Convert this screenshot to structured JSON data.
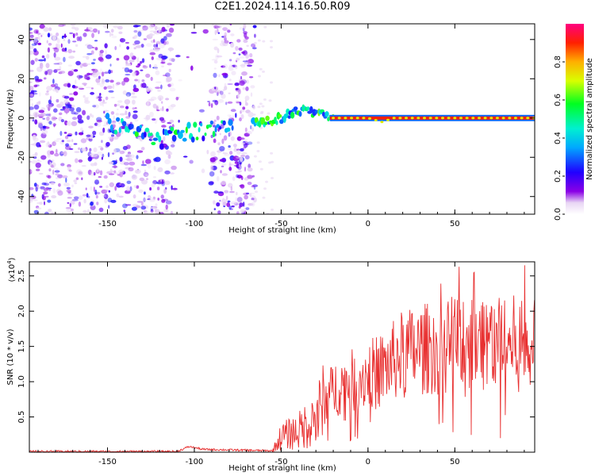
{
  "title": "C2E1.2024.114.16.50.R09",
  "chart_data": [
    {
      "type": "heatmap",
      "name": "spectrogram",
      "xlabel": "Height of straight line (km)",
      "ylabel": "Frequency (Hz)",
      "xlim": [
        -195,
        96
      ],
      "ylim": [
        -49,
        48
      ],
      "x_ticks": [
        -150,
        -100,
        -50,
        0,
        50
      ],
      "y_ticks": [
        -40,
        -20,
        0,
        20,
        40
      ],
      "colorbar": {
        "label": "Normalized spectral amplitude",
        "range": [
          0.0,
          1.0
        ],
        "ticks": [
          "0.0",
          "0.2",
          "0.4",
          "0.6",
          "0.8"
        ],
        "colormap": "rainbow (white-lavender at 0, purple, blue, cyan, green, yellow, orange, red, magenta at 1)"
      },
      "features": [
        {
          "desc": "noise speckles",
          "x_range": [
            -195,
            -65
          ],
          "freq_range": [
            -49,
            48
          ],
          "amplitude": 0.1
        },
        {
          "desc": "gap with little noise",
          "x_range": [
            -112,
            -90
          ],
          "amplitude": 0.02
        },
        {
          "desc": "weak trace",
          "x_range": [
            -150,
            -80
          ],
          "freq_center": -8,
          "amplitude": 0.35
        },
        {
          "desc": "main trace",
          "x_range": [
            -65,
            96
          ],
          "freq_center": 0,
          "amplitude": 1.0
        }
      ],
      "trace_ridge": [
        {
          "x": -150,
          "y": -3
        },
        {
          "x": -120,
          "y": -11
        },
        {
          "x": -100,
          "y": -7
        },
        {
          "x": -80,
          "y": -5
        },
        {
          "x": -65,
          "y": -3
        },
        {
          "x": -50,
          "y": 0
        },
        {
          "x": -40,
          "y": 4
        },
        {
          "x": -30,
          "y": 3
        },
        {
          "x": -20,
          "y": 0
        },
        {
          "x": 0,
          "y": 0
        },
        {
          "x": 8,
          "y": -2
        },
        {
          "x": 15,
          "y": 0
        },
        {
          "x": 96,
          "y": 0
        }
      ]
    },
    {
      "type": "line",
      "name": "snr",
      "xlabel": "Height of straight line (km)",
      "ylabel": "SNR (10 * v/v)",
      "multiplier_label": "(x10",
      "multiplier_exp": "4",
      "xlim": [
        -195,
        96
      ],
      "ylim": [
        0,
        2.7
      ],
      "x_ticks": [
        -150,
        -100,
        -50,
        0,
        50
      ],
      "y_ticks": [
        "0.5",
        "1.0",
        "1.5",
        "2.0",
        "2.5"
      ],
      "color": "#e83030",
      "envelope": [
        {
          "x": -195,
          "y": 0.01
        },
        {
          "x": -110,
          "y": 0.01
        },
        {
          "x": -103,
          "y": 0.08
        },
        {
          "x": -95,
          "y": 0.04
        },
        {
          "x": -55,
          "y": 0.02
        },
        {
          "x": -50,
          "y": 0.22
        },
        {
          "x": -40,
          "y": 0.3
        },
        {
          "x": -30,
          "y": 0.5
        },
        {
          "x": -20,
          "y": 0.9
        },
        {
          "x": -10,
          "y": 1.0
        },
        {
          "x": 0,
          "y": 1.1
        },
        {
          "x": 10,
          "y": 1.2
        },
        {
          "x": 20,
          "y": 1.4
        },
        {
          "x": 30,
          "y": 1.45
        },
        {
          "x": 40,
          "y": 1.5
        },
        {
          "x": 50,
          "y": 1.55
        },
        {
          "x": 60,
          "y": 1.6
        },
        {
          "x": 70,
          "y": 1.6
        },
        {
          "x": 80,
          "y": 1.55
        },
        {
          "x": 96,
          "y": 1.5
        }
      ]
    }
  ]
}
